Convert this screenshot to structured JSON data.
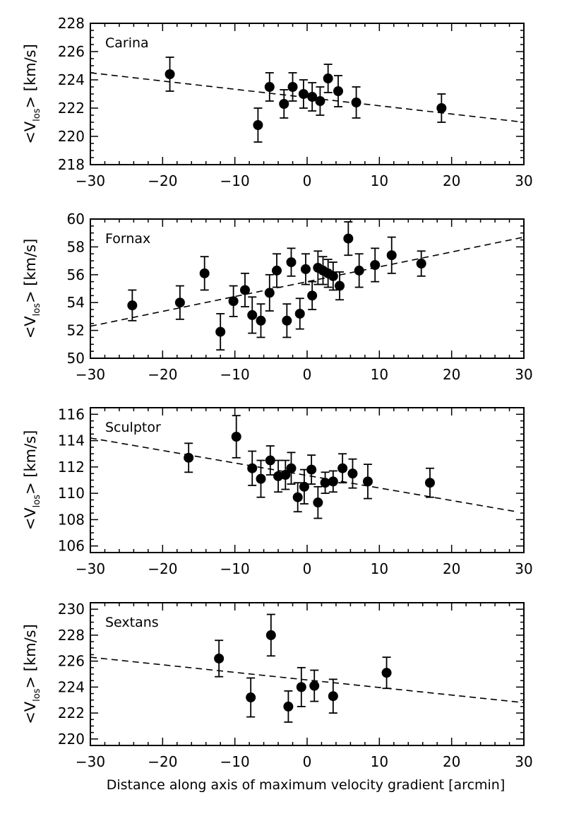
{
  "chart_data": [
    {
      "type": "scatter",
      "title": "Carina",
      "xlabel": "",
      "ylabel": "<V",
      "ylabel_subscript": "los",
      "ylabel_suffix": "> [km/s]",
      "xlim": [
        -30,
        30
      ],
      "ylim": [
        218,
        228
      ],
      "xticks": [
        -30,
        -20,
        -10,
        0,
        10,
        20,
        30
      ],
      "xtick_labels": [
        "−30",
        "−20",
        "−10",
        "0",
        "10",
        "20",
        "30"
      ],
      "yticks": [
        218,
        220,
        222,
        224,
        226,
        228
      ],
      "ytick_labels": [
        "218",
        "220",
        "222",
        "224",
        "226",
        "228"
      ],
      "grid": false,
      "points": [
        {
          "x": -19,
          "y": 224.4,
          "err": 1.2
        },
        {
          "x": -6.8,
          "y": 220.8,
          "err": 1.2
        },
        {
          "x": -5.2,
          "y": 223.5,
          "err": 1.0
        },
        {
          "x": -3.2,
          "y": 222.3,
          "err": 1.0
        },
        {
          "x": -2.0,
          "y": 223.5,
          "err": 1.0
        },
        {
          "x": -0.5,
          "y": 223.0,
          "err": 1.0
        },
        {
          "x": 0.7,
          "y": 222.8,
          "err": 1.0
        },
        {
          "x": 1.8,
          "y": 222.5,
          "err": 1.0
        },
        {
          "x": 2.9,
          "y": 224.1,
          "err": 1.0
        },
        {
          "x": 4.3,
          "y": 223.2,
          "err": 1.1
        },
        {
          "x": 6.8,
          "y": 222.4,
          "err": 1.1
        },
        {
          "x": 18.6,
          "y": 222.0,
          "err": 1.0
        }
      ],
      "fit_line": {
        "x": [
          -30,
          30
        ],
        "y": [
          224.5,
          221.0
        ]
      }
    },
    {
      "type": "scatter",
      "title": "Fornax",
      "xlabel": "",
      "ylabel": "<V",
      "ylabel_subscript": "los",
      "ylabel_suffix": "> [km/s]",
      "xlim": [
        -30,
        30
      ],
      "ylim": [
        50,
        60
      ],
      "xticks": [
        -30,
        -20,
        -10,
        0,
        10,
        20,
        30
      ],
      "xtick_labels": [
        "−30",
        "−20",
        "−10",
        "0",
        "10",
        "20",
        "30"
      ],
      "yticks": [
        50,
        52,
        54,
        56,
        58,
        60
      ],
      "ytick_labels": [
        "50",
        "52",
        "54",
        "56",
        "58",
        "60"
      ],
      "grid": false,
      "points": [
        {
          "x": -24.2,
          "y": 53.8,
          "err": 1.1
        },
        {
          "x": -17.6,
          "y": 54.0,
          "err": 1.2
        },
        {
          "x": -14.2,
          "y": 56.1,
          "err": 1.2
        },
        {
          "x": -12.0,
          "y": 51.9,
          "err": 1.3
        },
        {
          "x": -10.2,
          "y": 54.1,
          "err": 1.1
        },
        {
          "x": -8.6,
          "y": 54.9,
          "err": 1.2
        },
        {
          "x": -7.6,
          "y": 53.1,
          "err": 1.3
        },
        {
          "x": -6.4,
          "y": 52.7,
          "err": 1.2
        },
        {
          "x": -5.2,
          "y": 54.7,
          "err": 1.3
        },
        {
          "x": -4.2,
          "y": 56.3,
          "err": 1.2
        },
        {
          "x": -2.8,
          "y": 52.7,
          "err": 1.2
        },
        {
          "x": -2.2,
          "y": 56.9,
          "err": 1.0
        },
        {
          "x": -1.0,
          "y": 53.2,
          "err": 1.1
        },
        {
          "x": -0.2,
          "y": 56.4,
          "err": 1.1
        },
        {
          "x": 0.7,
          "y": 54.5,
          "err": 1.0
        },
        {
          "x": 1.5,
          "y": 56.5,
          "err": 1.2
        },
        {
          "x": 2.2,
          "y": 56.3,
          "err": 1.0
        },
        {
          "x": 2.9,
          "y": 56.1,
          "err": 1.0
        },
        {
          "x": 3.6,
          "y": 55.9,
          "err": 1.0
        },
        {
          "x": 4.5,
          "y": 55.2,
          "err": 1.0
        },
        {
          "x": 5.7,
          "y": 58.6,
          "err": 1.2
        },
        {
          "x": 7.2,
          "y": 56.3,
          "err": 1.2
        },
        {
          "x": 9.4,
          "y": 56.7,
          "err": 1.2
        },
        {
          "x": 11.7,
          "y": 57.4,
          "err": 1.3
        },
        {
          "x": 15.8,
          "y": 56.8,
          "err": 0.9
        }
      ],
      "fit_line": {
        "x": [
          -30,
          30
        ],
        "y": [
          52.3,
          58.7
        ]
      }
    },
    {
      "type": "scatter",
      "title": "Sculptor",
      "xlabel": "",
      "ylabel": "<V",
      "ylabel_subscript": "los",
      "ylabel_suffix": "> [km/s]",
      "xlim": [
        -30,
        30
      ],
      "ylim": [
        105.5,
        116.5
      ],
      "xticks": [
        -30,
        -20,
        -10,
        0,
        10,
        20,
        30
      ],
      "xtick_labels": [
        "−30",
        "−20",
        "−10",
        "0",
        "10",
        "20",
        "30"
      ],
      "yticks": [
        106,
        108,
        110,
        112,
        114,
        116
      ],
      "ytick_labels": [
        "106",
        "108",
        "110",
        "112",
        "114",
        "116"
      ],
      "grid": false,
      "points": [
        {
          "x": -16.4,
          "y": 112.7,
          "err": 1.1
        },
        {
          "x": -9.8,
          "y": 114.3,
          "err": 1.6
        },
        {
          "x": -7.6,
          "y": 111.9,
          "err": 1.3
        },
        {
          "x": -6.4,
          "y": 111.1,
          "err": 1.4
        },
        {
          "x": -5.1,
          "y": 112.5,
          "err": 1.1
        },
        {
          "x": -4.0,
          "y": 111.3,
          "err": 1.2
        },
        {
          "x": -3.0,
          "y": 111.4,
          "err": 1.1
        },
        {
          "x": -2.2,
          "y": 111.9,
          "err": 1.2
        },
        {
          "x": -1.3,
          "y": 109.7,
          "err": 1.1
        },
        {
          "x": -0.4,
          "y": 110.5,
          "err": 1.3
        },
        {
          "x": 0.6,
          "y": 111.8,
          "err": 1.1
        },
        {
          "x": 1.5,
          "y": 109.3,
          "err": 1.2
        },
        {
          "x": 2.5,
          "y": 110.8,
          "err": 0.8
        },
        {
          "x": 3.6,
          "y": 110.9,
          "err": 0.8
        },
        {
          "x": 4.9,
          "y": 111.9,
          "err": 1.1
        },
        {
          "x": 6.3,
          "y": 111.5,
          "err": 1.1
        },
        {
          "x": 8.4,
          "y": 110.9,
          "err": 1.3
        },
        {
          "x": 17.0,
          "y": 110.8,
          "err": 1.1
        }
      ],
      "fit_line": {
        "x": [
          -30,
          29
        ],
        "y": [
          114.2,
          108.6
        ]
      }
    },
    {
      "type": "scatter",
      "title": "Sextans",
      "xlabel": "Distance along axis of maximum velocity gradient [arcmin]",
      "ylabel": "<V",
      "ylabel_subscript": "los",
      "ylabel_suffix": "> [km/s]",
      "xlim": [
        -30,
        30
      ],
      "ylim": [
        219.5,
        230.5
      ],
      "xticks": [
        -30,
        -20,
        -10,
        0,
        10,
        20,
        30
      ],
      "xtick_labels": [
        "−30",
        "−20",
        "−10",
        "0",
        "10",
        "20",
        "30"
      ],
      "yticks": [
        220,
        222,
        224,
        226,
        228,
        230
      ],
      "ytick_labels": [
        "220",
        "222",
        "224",
        "226",
        "228",
        "230"
      ],
      "grid": false,
      "points": [
        {
          "x": -12.2,
          "y": 226.2,
          "err": 1.4
        },
        {
          "x": -7.8,
          "y": 223.2,
          "err": 1.5
        },
        {
          "x": -5.0,
          "y": 228.0,
          "err": 1.6
        },
        {
          "x": -2.6,
          "y": 222.5,
          "err": 1.2
        },
        {
          "x": -0.8,
          "y": 224.0,
          "err": 1.5
        },
        {
          "x": 1.0,
          "y": 224.1,
          "err": 1.2
        },
        {
          "x": 3.6,
          "y": 223.3,
          "err": 1.3
        },
        {
          "x": 11.0,
          "y": 225.1,
          "err": 1.2
        }
      ],
      "fit_line": {
        "x": [
          -30,
          30
        ],
        "y": [
          226.3,
          222.8
        ]
      }
    }
  ]
}
